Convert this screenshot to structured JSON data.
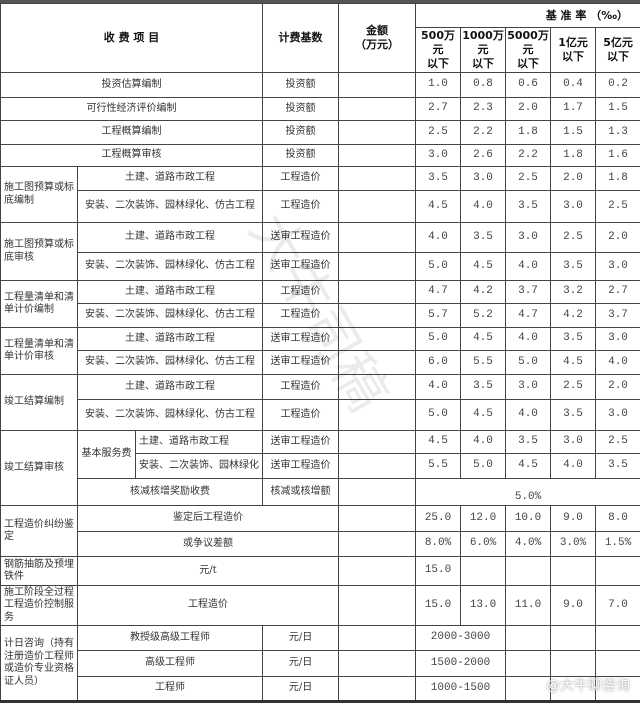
{
  "header": {
    "item": "收 费 项 目",
    "basis": "计费基数",
    "amount": "金额\n（万元）",
    "rate_title": "基 准 率 （‰）",
    "tiers": [
      "500万\n元\n以下",
      "1000万\n元\n以下",
      "5000万\n元\n以下",
      "1亿元\n以下",
      "5亿元\n以下"
    ]
  },
  "rows": {
    "r1": {
      "item": "投资估算编制",
      "basis": "投资额",
      "rates": [
        "1.0",
        "0.8",
        "0.6",
        "0.4",
        "0.2"
      ]
    },
    "r2": {
      "item": "可行性经济评价编制",
      "basis": "投资额",
      "rates": [
        "2.7",
        "2.3",
        "2.0",
        "1.7",
        "1.5"
      ]
    },
    "r3": {
      "item": "工程概算编制",
      "basis": "投资额",
      "rates": [
        "2.5",
        "2.2",
        "1.8",
        "1.5",
        "1.3"
      ]
    },
    "r4": {
      "item": "工程概算审核",
      "basis": "投资额",
      "rates": [
        "3.0",
        "2.6",
        "2.2",
        "1.8",
        "1.6"
      ]
    },
    "g1": {
      "group": "施工图预算或标底编制",
      "a": {
        "item": "土建、道路市政工程",
        "basis": "工程造价",
        "rates": [
          "3.5",
          "3.0",
          "2.5",
          "2.0",
          "1.8"
        ]
      },
      "b": {
        "item": "安装、二次装饰、园林绿化、仿古工程",
        "basis": "工程造价",
        "rates": [
          "4.5",
          "4.0",
          "3.5",
          "3.0",
          "2.5"
        ]
      }
    },
    "g2": {
      "group": "施工图预算或标底审核",
      "a": {
        "item": "土建、道路市政工程",
        "basis": "送审工程造价",
        "rates": [
          "4.0",
          "3.5",
          "3.0",
          "2.5",
          "2.0"
        ]
      },
      "b": {
        "item": "安装、二次装饰、园林绿化、仿古工程",
        "basis": "送审工程造价",
        "rates": [
          "5.0",
          "4.5",
          "4.0",
          "3.5",
          "3.0"
        ]
      }
    },
    "g3": {
      "group": "工程量清单和清单计价编制",
      "a": {
        "item": "土建、道路市政工程",
        "basis": "工程造价",
        "rates": [
          "4.7",
          "4.2",
          "3.7",
          "3.2",
          "2.7"
        ]
      },
      "b": {
        "item": "安装、二次装饰、园林绿化、仿古工程",
        "basis": "工程造价",
        "rates": [
          "5.7",
          "5.2",
          "4.7",
          "4.2",
          "3.7"
        ]
      }
    },
    "g4": {
      "group": "工程量清单和清单计价审核",
      "a": {
        "item": "土建、道路市政工程",
        "basis": "送审工程造价",
        "rates": [
          "5.0",
          "4.5",
          "4.0",
          "3.5",
          "3.0"
        ]
      },
      "b": {
        "item": "安装、二次装饰、园林绿化、仿古工程",
        "basis": "送审工程造价",
        "rates": [
          "6.0",
          "5.5",
          "5.0",
          "4.5",
          "4.0"
        ]
      }
    },
    "g5": {
      "group": "竣工结算编制",
      "a": {
        "item": "土建、道路市政工程",
        "basis": "工程造价",
        "rates": [
          "4.0",
          "3.5",
          "3.0",
          "2.5",
          "2.0"
        ]
      },
      "b": {
        "item": "安装、二次装饰、园林绿化、仿古工程",
        "basis": "工程造价",
        "rates": [
          "5.0",
          "4.5",
          "4.0",
          "3.5",
          "3.0"
        ]
      }
    },
    "g6": {
      "group": "竣工结算审核",
      "sub": "基本服务费",
      "a": {
        "item": "土建、道路市政工程",
        "basis": "送审工程造价",
        "rates": [
          "4.5",
          "4.0",
          "3.5",
          "3.0",
          "2.5"
        ]
      },
      "b": {
        "item": "安装、二次装饰、园林绿化",
        "basis": "送审工程造价",
        "rates": [
          "5.5",
          "5.0",
          "4.5",
          "4.0",
          "3.5"
        ]
      },
      "c": {
        "item": "核减核增奖励收费",
        "basis": "核减或核增额",
        "rate": "5.0%"
      }
    },
    "g7": {
      "group": "工程造价纠纷鉴定",
      "a": {
        "item": "鉴定后工程造价",
        "rates": [
          "25.0",
          "12.0",
          "10.0",
          "9.0",
          "8.0"
        ]
      },
      "b": {
        "item": "或争议差额",
        "rates": [
          "8.0%",
          "6.0%",
          "4.0%",
          "3.0%",
          "1.5%"
        ]
      }
    },
    "r8": {
      "group": "钢筋抽筋及预埋铁件",
      "item": "元/t",
      "rate": "15.0"
    },
    "r9": {
      "group": "施工阶段全过程工程造价控制服务",
      "item": "工程造价",
      "rates": [
        "15.0",
        "13.0",
        "11.0",
        "9.0",
        "7.0"
      ]
    },
    "g8": {
      "group": "计日咨询（持有注册造价工程师或造价专业资格证人员）",
      "a": {
        "item": "教授级高级工程师",
        "basis": "元/日",
        "range": "2000-3000"
      },
      "b": {
        "item": "高级工程师",
        "basis": "元/日",
        "range": "1500-2000"
      },
      "c": {
        "item": "工程师",
        "basis": "元/日",
        "range": "1000-1500"
      }
    }
  },
  "watermark": "大牛司稿",
  "credit": "@大牛聊咨询"
}
